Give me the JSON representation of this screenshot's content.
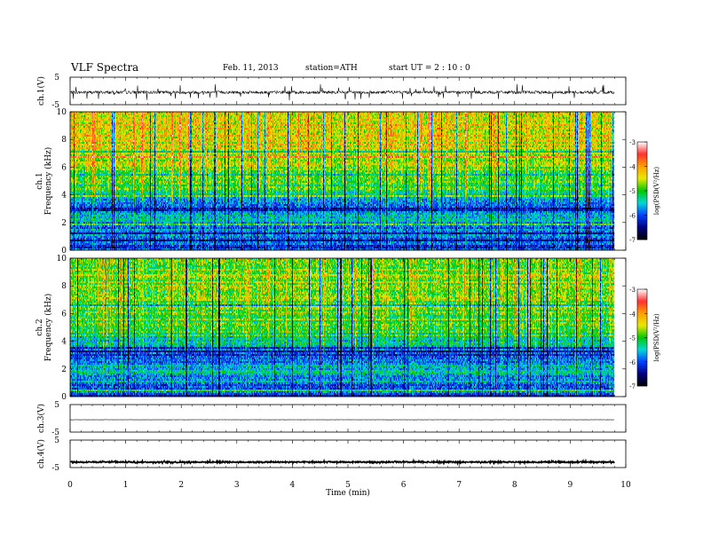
{
  "header": {
    "title": "VLF  Spectra",
    "date": "Feb. 11, 2013",
    "station": "station=ATH",
    "start": "start  UT  =   2  : 10 : 0"
  },
  "chart_data": {
    "type": "heatmap",
    "xlabel": "Time  (min)",
    "xlim": [
      0,
      10
    ],
    "x_ticks": [
      "0",
      "1",
      "2",
      "3",
      "4",
      "5",
      "6",
      "7",
      "8",
      "9",
      "10"
    ],
    "panels": [
      {
        "id": "ch1_waveform",
        "type": "line",
        "ylabel": "ch.1(V)",
        "ylim": [
          -5,
          5
        ],
        "y_ticks": [
          "5",
          "-5"
        ]
      },
      {
        "id": "ch1_spectrogram",
        "type": "heatmap",
        "ylabel_top": "ch.1",
        "ylabel": "Frequency  (kHz)",
        "ylim": [
          0,
          10
        ],
        "y_ticks": [
          "10",
          "8",
          "6",
          "4",
          "2",
          "0"
        ],
        "data_extent_min": 9.8
      },
      {
        "id": "ch2_spectrogram",
        "type": "heatmap",
        "ylabel_top": "ch.2",
        "ylabel": "Frequency  (kHz)",
        "ylim": [
          0,
          10
        ],
        "y_ticks": [
          "10",
          "8",
          "6",
          "4",
          "2",
          "0"
        ],
        "data_extent_min": 9.8
      },
      {
        "id": "ch3_waveform",
        "type": "line",
        "ylabel": "ch.3(V)",
        "ylim": [
          -5,
          5
        ],
        "y_ticks": [
          "5",
          "-5"
        ]
      },
      {
        "id": "ch4_waveform",
        "type": "line",
        "ylabel": "ch.4(V)",
        "ylim": [
          -5,
          5
        ],
        "y_ticks": [
          "5",
          "-5"
        ]
      }
    ],
    "colorbar": {
      "label": "log(PSD(V²/Hz)",
      "range": [
        -7,
        -3
      ],
      "ticks": [
        "-3",
        "-4",
        "-5",
        "-6",
        "-7"
      ],
      "colors": [
        "#ffffff",
        "#ff3030",
        "#ffa000",
        "#e8e800",
        "#00c800",
        "#00d8d8",
        "#0040ff",
        "#000080",
        "#000000"
      ]
    },
    "spectral_profile": {
      "freq_khz": [
        0,
        0.5,
        1,
        1.5,
        2,
        2.5,
        3,
        3.5,
        4,
        4.5,
        5,
        5.5,
        6,
        6.5,
        7,
        7.5,
        8,
        8.5,
        9,
        9.5,
        10
      ],
      "ch1_logpsd": [
        -6.2,
        -5.9,
        -5.9,
        -5.8,
        -5.5,
        -5.6,
        -6.2,
        -6.0,
        -5.2,
        -5.0,
        -4.9,
        -4.8,
        -4.7,
        -4.6,
        -4.5,
        -4.4,
        -4.4,
        -4.3,
        -4.3,
        -4.4,
        -4.5
      ],
      "ch2_logpsd": [
        -6.3,
        -5.9,
        -5.8,
        -5.7,
        -5.5,
        -5.7,
        -6.2,
        -5.8,
        -5.3,
        -5.1,
        -5.0,
        -4.9,
        -4.9,
        -4.9,
        -4.8,
        -4.8,
        -4.8,
        -4.7,
        -4.7,
        -4.8,
        -4.9
      ]
    },
    "waveform_levels_v": {
      "ch1": -0.5,
      "ch3": -0.5,
      "ch4": -3.0
    }
  }
}
